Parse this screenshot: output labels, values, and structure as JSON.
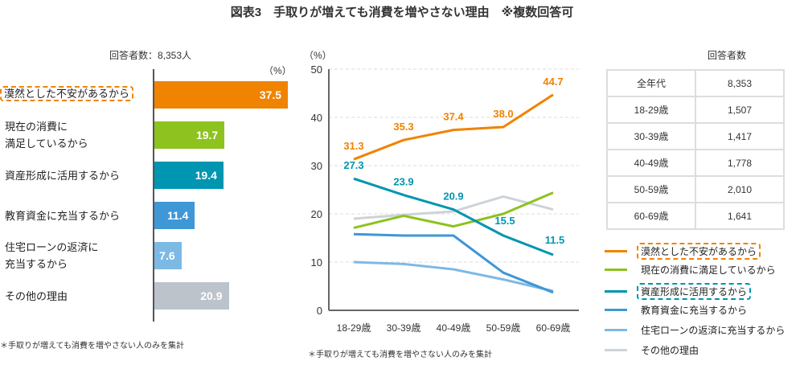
{
  "title": "図表3　手取りが増えても消費を増やさない理由　※複数回答可",
  "bar_chart": {
    "respondents_label": "回答者数：8,353人",
    "unit": "（%）",
    "footnote": "＊手取りが増えても消費を増やさない人のみを集計"
  },
  "line_chart": {
    "unit": "（%）",
    "footnote": "＊手取りが増えても消費を増やさない人のみを集計"
  },
  "table": {
    "title": "回答者数",
    "rows": [
      {
        "age": "全年代",
        "count": "8,353"
      },
      {
        "age": "18-29歳",
        "count": "1,507"
      },
      {
        "age": "30-39歳",
        "count": "1,417"
      },
      {
        "age": "40-49歳",
        "count": "1,778"
      },
      {
        "age": "50-59歳",
        "count": "2,010"
      },
      {
        "age": "60-69歳",
        "count": "1,641"
      }
    ]
  },
  "legend": [
    "漠然とした不安があるから",
    "現在の消費に満足しているから",
    "資産形成に活用するから",
    "教育資金に充当するから",
    "住宅ローンの返済に充当するから",
    "その他の理由"
  ],
  "chart_data": [
    {
      "type": "bar",
      "orientation": "horizontal",
      "categories": [
        "漠然とした不安があるから",
        "現在の消費に\n満足しているから",
        "資産形成に活用するから",
        "教育資金に充当するから",
        "住宅ローンの返済に\n充当するから",
        "その他の理由"
      ],
      "values": [
        37.5,
        19.7,
        19.4,
        11.4,
        7.6,
        20.9
      ],
      "value_labels": [
        "37.5",
        "19.7",
        "19.4",
        "11.4",
        "7.6",
        "20.9"
      ],
      "colors": [
        "#f08300",
        "#8dc21f",
        "#0095b0",
        "#3f97d6",
        "#7db9e5",
        "#bcc3ca"
      ],
      "highlighted": [
        "漠然とした不安があるから"
      ],
      "xlim": [
        0,
        37.5
      ],
      "unit": "（%）"
    },
    {
      "type": "line",
      "categories": [
        "18-29歳",
        "30-39歳",
        "40-49歳",
        "50-59歳",
        "60-69歳"
      ],
      "ylim": [
        0,
        50
      ],
      "yticks": [
        0,
        10,
        20,
        30,
        40,
        50
      ],
      "grid": "horizontal-dashed",
      "legend_placement": "right",
      "series": [
        {
          "name": "漠然とした不安があるから",
          "color": "#f08300",
          "values": [
            31.3,
            35.3,
            37.4,
            38.0,
            44.7
          ],
          "labels": [
            "31.3",
            "35.3",
            "37.4",
            "38.0",
            "44.7"
          ]
        },
        {
          "name": "現在の消費に満足しているから",
          "color": "#8dc21f",
          "values": [
            17.1,
            19.6,
            17.4,
            20.0,
            24.4
          ]
        },
        {
          "name": "資産形成に活用するから",
          "color": "#0095b0",
          "values": [
            27.3,
            23.9,
            20.9,
            15.5,
            11.5
          ],
          "labels": [
            "27.3",
            "23.9",
            "20.9",
            "15.5",
            "11.5"
          ]
        },
        {
          "name": "教育資金に充当するから",
          "color": "#3f97d6",
          "values": [
            15.8,
            15.5,
            15.5,
            7.8,
            3.7
          ]
        },
        {
          "name": "住宅ローンの返済に充当するから",
          "color": "#7db9e5",
          "values": [
            10.0,
            9.6,
            8.5,
            6.4,
            4.0
          ]
        },
        {
          "name": "その他の理由",
          "color": "#cdd3d8",
          "values": [
            19.0,
            19.8,
            20.5,
            23.6,
            20.9
          ]
        }
      ]
    }
  ]
}
